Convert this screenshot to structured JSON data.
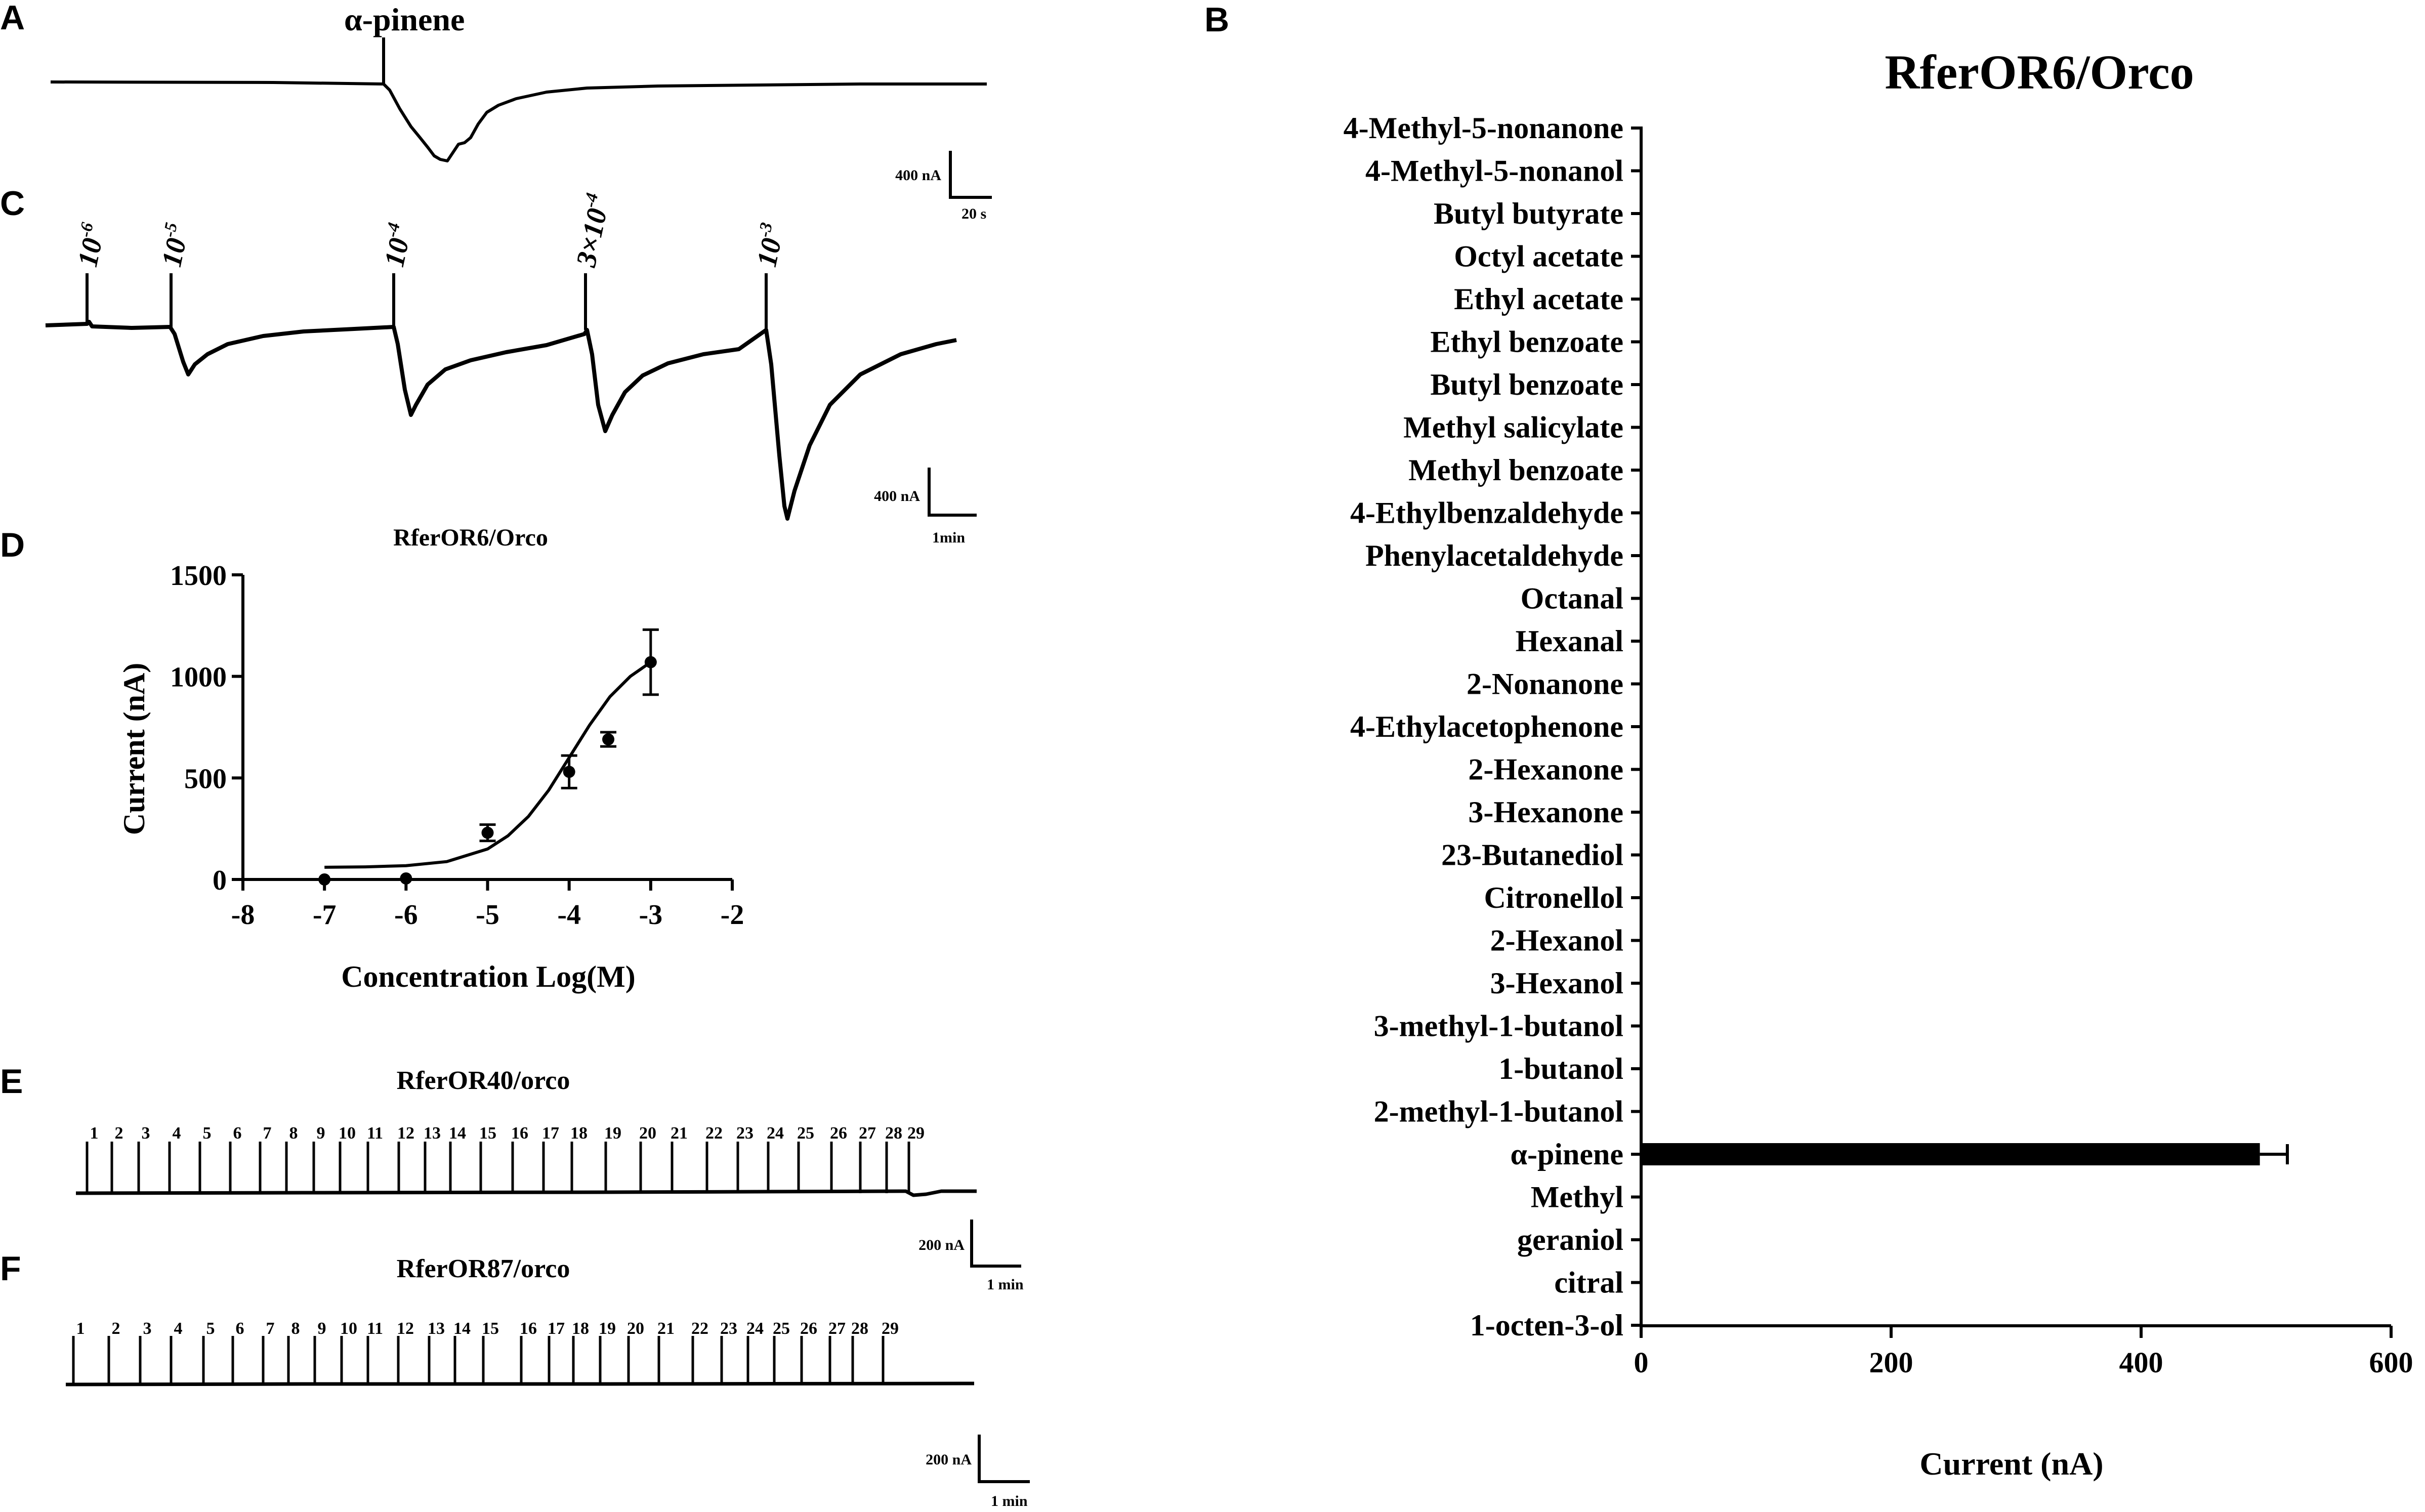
{
  "panels": {
    "a": {
      "letter": "A",
      "stimulus": "α-pinene",
      "scale_current": "400 nA",
      "scale_time": "20 s"
    },
    "b": {
      "letter": "B"
    },
    "c": {
      "letter": "C",
      "scale_current": "400 nA",
      "scale_time": "1min",
      "doses": [
        {
          "base": "10",
          "exp": "-6"
        },
        {
          "base": "10",
          "exp": "-5"
        },
        {
          "base": "10",
          "exp": "-4"
        },
        {
          "base": "3×10",
          "exp": "-4"
        },
        {
          "base": "10",
          "exp": "-3"
        }
      ]
    },
    "d": {
      "letter": "D"
    },
    "e": {
      "letter": "E",
      "title": "RferOR40/orco",
      "scale_current": "200 nA",
      "scale_time": "1 min"
    },
    "f": {
      "letter": "F",
      "title": "RferOR87/orco",
      "scale_current": "200 nA",
      "scale_time": "1 min"
    }
  },
  "chart_data": [
    {
      "type": "bar",
      "orientation": "horizontal",
      "panel": "B",
      "title": "RferOR6/Orco",
      "xlabel": "Current (nA)",
      "ylabel": "",
      "xlim": [
        0,
        600
      ],
      "xticks": [
        "0",
        "200",
        "400",
        "600"
      ],
      "categories": [
        "4-Methyl-5-nonanone",
        "4-Methyl-5-nonanol",
        "Butyl butyrate",
        "Octyl acetate",
        "Ethyl acetate",
        "Ethyl benzoate",
        "Butyl benzoate",
        "Methyl salicylate",
        "Methyl benzoate",
        "4-Ethylbenzaldehyde",
        "Phenylacetaldehyde",
        "Octanal",
        "Hexanal",
        "2-Nonanone",
        "4-Ethylacetophenone",
        "2-Hexanone",
        "3-Hexanone",
        "23-Butanediol",
        "Citronellol",
        "2-Hexanol",
        "3-Hexanol",
        "3-methyl-1-butanol",
        "1-butanol",
        "2-methyl-1-butanol",
        "α-pinene",
        "Methyl",
        "geraniol",
        "citral",
        "1-octen-3-ol"
      ],
      "values": [
        0,
        0,
        0,
        0,
        0,
        0,
        0,
        0,
        0,
        0,
        0,
        0,
        0,
        0,
        0,
        0,
        0,
        0,
        0,
        0,
        0,
        0,
        0,
        0,
        495,
        0,
        0,
        0,
        0
      ],
      "errors": [
        0,
        0,
        0,
        0,
        0,
        0,
        0,
        0,
        0,
        0,
        0,
        0,
        0,
        0,
        0,
        0,
        0,
        0,
        0,
        0,
        0,
        0,
        0,
        0,
        22,
        0,
        0,
        0,
        0
      ],
      "bar_color": "#000000"
    },
    {
      "type": "scatter",
      "panel": "D",
      "title": "RferOR6/Orco",
      "xlabel": "Concentration Log(M)",
      "ylabel": "Current (nA)",
      "xlim": [
        -8,
        -2
      ],
      "ylim": [
        0,
        1500
      ],
      "xticks": [
        "-8",
        "-7",
        "-6",
        "-5",
        "-4",
        "-3",
        "-2"
      ],
      "yticks": [
        "0",
        "500",
        "1000",
        "1500"
      ],
      "x": [
        -7,
        -6,
        -5,
        -4,
        -3.52,
        -3
      ],
      "y": [
        0,
        5,
        230,
        530,
        690,
        1070
      ],
      "errors": [
        0,
        0,
        40,
        80,
        35,
        160
      ],
      "fit": "sigmoidal dose-response curve",
      "fit_x": [
        -7,
        -6.5,
        -6,
        -5.5,
        -5,
        -4.75,
        -4.5,
        -4.25,
        -4,
        -3.75,
        -3.5,
        -3.25,
        -3
      ],
      "fit_y": [
        60,
        62,
        68,
        88,
        150,
        215,
        310,
        440,
        600,
        760,
        900,
        1000,
        1070
      ]
    },
    {
      "type": "line",
      "panel": "E",
      "title": "RferOR40/orco",
      "stimulus_labels": [
        "1",
        "2",
        "3",
        "4",
        "5",
        "6",
        "7",
        "8",
        "9",
        "10",
        "11",
        "12",
        "13",
        "14",
        "15",
        "16",
        "17",
        "18",
        "19",
        "20",
        "21",
        "22",
        "23",
        "24",
        "25",
        "26",
        "27",
        "28",
        "29"
      ]
    },
    {
      "type": "line",
      "panel": "F",
      "title": "RferOR87/orco",
      "stimulus_labels": [
        "1",
        "2",
        "3",
        "4",
        "5",
        "6",
        "7",
        "8",
        "9",
        "10",
        "11",
        "12",
        "13",
        "14",
        "15",
        "16",
        "17",
        "18",
        "19",
        "20",
        "21",
        "22",
        "23",
        "24",
        "25",
        "26",
        "27",
        "28",
        "29"
      ]
    }
  ]
}
